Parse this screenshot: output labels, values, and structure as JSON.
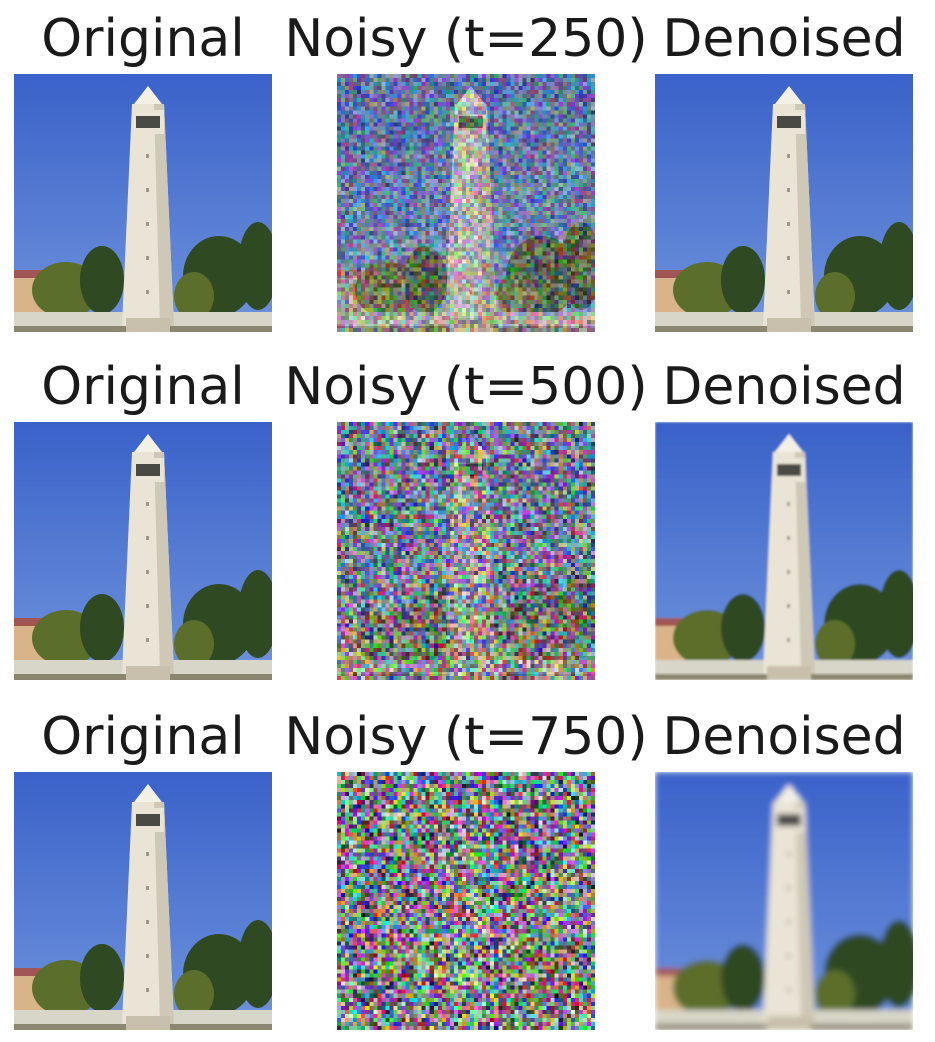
{
  "rows": [
    {
      "original_label": "Original",
      "noisy_label": "Noisy (t=250)",
      "denoised_label": "Denoised",
      "noise_level": 0.5,
      "blur_level": 0
    },
    {
      "original_label": "Original",
      "noisy_label": "Noisy (t=500)",
      "denoised_label": "Denoised",
      "noise_level": 0.75,
      "blur_level": 1
    },
    {
      "original_label": "Original",
      "noisy_label": "Noisy (t=750)",
      "denoised_label": "Denoised",
      "noise_level": 0.92,
      "blur_level": 3
    }
  ],
  "palette": {
    "sky_top": "#3a62c9",
    "sky_bottom": "#6f93dc",
    "tower": "#e9e4d6",
    "tower_shadow": "#cfc8b6",
    "trees": "#2f4a22",
    "trees_light": "#5c6e2c",
    "roof": "#b04a34",
    "ground": "#d8d6c8"
  }
}
